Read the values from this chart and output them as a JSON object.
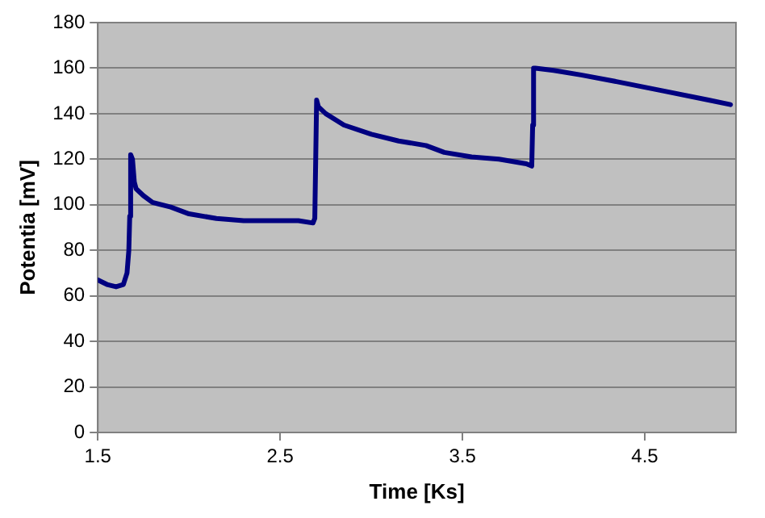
{
  "chart_data": {
    "type": "line",
    "xlabel": "Time [Ks]",
    "ylabel": "Potentia [mV]",
    "x": [
      1.5,
      1.55,
      1.6,
      1.64,
      1.66,
      1.67,
      1.675,
      1.68,
      1.69,
      1.7,
      1.71,
      1.75,
      1.8,
      1.9,
      2.0,
      2.15,
      2.3,
      2.6,
      2.68,
      2.69,
      2.7,
      2.71,
      2.75,
      2.85,
      3.0,
      3.15,
      3.3,
      3.4,
      3.55,
      3.7,
      3.85,
      3.88,
      3.885,
      3.89,
      3.9,
      4.0,
      4.15,
      4.35,
      4.6,
      4.85,
      4.97
    ],
    "series": [
      {
        "color": "#000080",
        "values": [
          67,
          65,
          64,
          65,
          70,
          80,
          95,
          122,
          120,
          110,
          107,
          104,
          101,
          99,
          96,
          94,
          93,
          93,
          92,
          94,
          146,
          143,
          140,
          135,
          131,
          128,
          126,
          123,
          121,
          120,
          118,
          117,
          135,
          160,
          160,
          159,
          157,
          154,
          150,
          146,
          144
        ]
      }
    ],
    "xlim": [
      1.5,
      5.0
    ],
    "xticks": [
      1.5,
      2.5,
      3.5,
      4.5
    ],
    "ylim": [
      0,
      180
    ],
    "yticks": [
      0,
      20,
      40,
      60,
      80,
      100,
      120,
      140,
      160,
      180
    ],
    "grid": "y",
    "legend": false,
    "marker": "none",
    "line_style": "solid"
  }
}
